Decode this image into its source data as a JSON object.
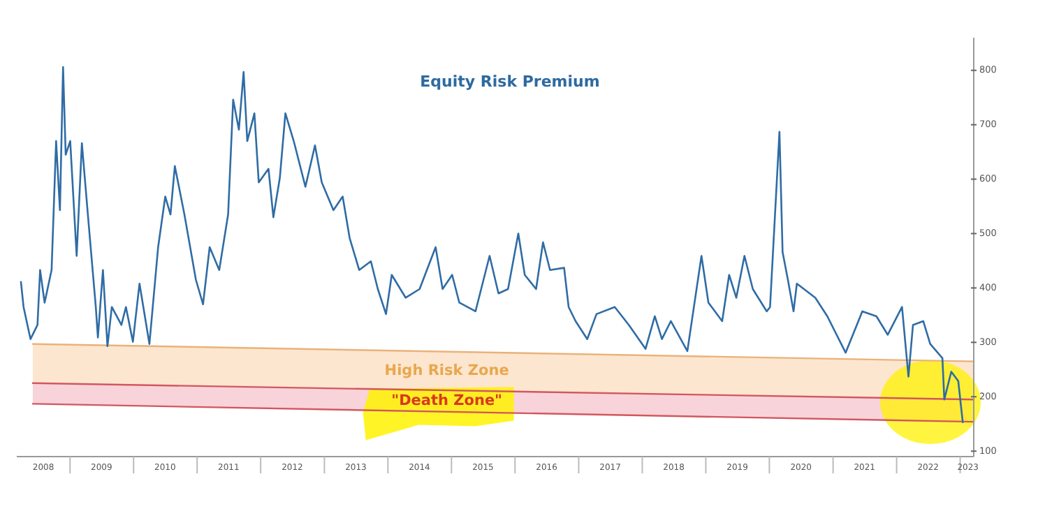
{
  "chart_data": {
    "type": "line",
    "title": "Equity Risk Premium",
    "xlim": [
      "2008-03-01",
      "2023-03-20"
    ],
    "ylim": [
      90,
      860
    ],
    "xticks": [
      {
        "value": "2008-08-01",
        "label": "2008"
      },
      {
        "value": "2009-01-01",
        "label": null
      },
      {
        "value": "2009-07-01",
        "label": "2009"
      },
      {
        "value": "2010-01-01",
        "label": null
      },
      {
        "value": "2010-07-01",
        "label": "2010"
      },
      {
        "value": "2011-01-01",
        "label": null
      },
      {
        "value": "2011-07-01",
        "label": "2011"
      },
      {
        "value": "2012-01-01",
        "label": null
      },
      {
        "value": "2012-07-01",
        "label": "2012"
      },
      {
        "value": "2013-01-01",
        "label": null
      },
      {
        "value": "2013-07-01",
        "label": "2013"
      },
      {
        "value": "2014-01-01",
        "label": null
      },
      {
        "value": "2014-07-01",
        "label": "2014"
      },
      {
        "value": "2015-01-01",
        "label": null
      },
      {
        "value": "2015-07-01",
        "label": "2015"
      },
      {
        "value": "2016-01-01",
        "label": null
      },
      {
        "value": "2016-07-01",
        "label": "2016"
      },
      {
        "value": "2017-01-01",
        "label": null
      },
      {
        "value": "2017-07-01",
        "label": "2017"
      },
      {
        "value": "2018-01-01",
        "label": null
      },
      {
        "value": "2018-07-01",
        "label": "2018"
      },
      {
        "value": "2019-01-01",
        "label": null
      },
      {
        "value": "2019-07-01",
        "label": "2019"
      },
      {
        "value": "2020-01-01",
        "label": null
      },
      {
        "value": "2020-07-01",
        "label": "2020"
      },
      {
        "value": "2021-01-01",
        "label": null
      },
      {
        "value": "2021-07-01",
        "label": "2021"
      },
      {
        "value": "2022-01-01",
        "label": null
      },
      {
        "value": "2022-07-01",
        "label": "2022"
      },
      {
        "value": "2023-01-01",
        "label": null
      },
      {
        "value": "2023-02-15",
        "label": "2023"
      }
    ],
    "yticks": [
      100,
      200,
      300,
      400,
      500,
      600,
      700,
      800
    ],
    "grid": false,
    "series": [
      {
        "type": "line",
        "color": "#e9b27a",
        "x": [
          "2008-06-01",
          "2023-03-20"
        ],
        "values": [
          297,
          265
        ]
      },
      {
        "type": "line",
        "color": "#d2575f",
        "x": [
          "2008-06-01",
          "2023-03-20"
        ],
        "values": [
          225,
          195
        ]
      },
      {
        "type": "line",
        "color": "#d2575f",
        "x": [
          "2008-06-01",
          "2023-03-20"
        ],
        "values": [
          187,
          154
        ]
      },
      {
        "color": "#2f6ca5",
        "x": [
          "2008-03-25",
          "2008-04-09",
          "2008-05-19",
          "2008-06-28",
          "2008-07-13",
          "2008-08-08",
          "2008-09-17",
          "2008-10-13",
          "2008-11-04",
          "2008-11-22",
          "2008-12-07",
          "2009-01-02",
          "2009-02-08",
          "2009-03-10",
          "2009-04-20",
          "2009-05-29",
          "2009-06-10",
          "2009-07-09",
          "2009-08-04",
          "2009-08-29",
          "2009-10-23",
          "2009-11-18",
          "2009-12-28",
          "2010-02-04",
          "2010-04-02",
          "2010-05-22",
          "2010-07-02",
          "2010-08-01",
          "2010-08-26",
          "2010-10-20",
          "2010-12-25",
          "2011-02-04",
          "2011-03-14",
          "2011-05-08",
          "2011-06-28",
          "2011-07-27",
          "2011-08-29",
          "2011-09-25",
          "2011-10-16",
          "2011-11-26",
          "2011-12-21",
          "2012-02-15",
          "2012-03-14",
          "2012-04-20",
          "2012-05-22",
          "2012-07-09",
          "2012-09-14",
          "2012-11-08",
          "2012-12-17",
          "2013-02-22",
          "2013-04-16",
          "2013-05-26",
          "2013-07-20",
          "2013-09-25",
          "2013-11-04",
          "2013-12-21",
          "2014-01-23",
          "2014-04-13",
          "2014-07-02",
          "2014-10-02",
          "2014-11-11",
          "2015-01-05",
          "2015-02-15",
          "2015-05-19",
          "2015-08-08",
          "2015-09-28",
          "2015-11-22",
          "2016-01-20",
          "2016-02-26",
          "2016-05-01",
          "2016-06-10",
          "2016-07-20",
          "2016-10-09",
          "2016-11-04",
          "2016-12-14",
          "2017-02-19",
          "2017-04-13",
          "2017-07-27",
          "2017-10-16",
          "2018-01-20",
          "2018-03-14",
          "2018-04-24",
          "2018-06-14",
          "2018-09-17",
          "2018-12-07",
          "2019-01-16",
          "2019-04-05",
          "2019-05-15",
          "2019-06-25",
          "2019-08-11",
          "2019-09-28",
          "2019-12-17",
          "2020-01-05",
          "2020-02-28",
          "2020-03-17",
          "2020-04-16",
          "2020-05-19",
          "2020-06-07",
          "2020-09-21",
          "2020-11-29",
          "2021-03-14",
          "2021-06-18",
          "2021-09-07",
          "2021-11-11",
          "2022-02-01",
          "2022-03-10",
          "2022-04-05",
          "2022-06-03",
          "2022-07-13",
          "2022-09-21",
          "2022-10-02",
          "2022-11-11",
          "2022-12-21",
          "2023-01-16"
        ],
        "values": [
          411,
          365,
          306,
          332,
          433,
          373,
          433,
          670,
          543,
          806,
          645,
          670,
          459,
          666,
          510,
          365,
          309,
          433,
          293,
          365,
          332,
          365,
          301,
          408,
          297,
          475,
          568,
          535,
          624,
          535,
          415,
          370,
          475,
          433,
          535,
          746,
          691,
          797,
          670,
          721,
          594,
          619,
          530,
          602,
          721,
          670,
          586,
          662,
          594,
          543,
          568,
          492,
          433,
          449,
          398,
          352,
          424,
          382,
          398,
          475,
          398,
          424,
          373,
          357,
          459,
          390,
          398,
          500,
          424,
          398,
          484,
          433,
          437,
          365,
          339,
          306,
          352,
          365,
          332,
          288,
          348,
          306,
          339,
          284,
          459,
          373,
          339,
          424,
          382,
          459,
          398,
          357,
          365,
          687,
          466,
          416,
          357,
          408,
          382,
          348,
          281,
          357,
          348,
          314,
          365,
          237,
          332,
          339,
          297,
          271,
          195,
          246,
          229,
          153
        ]
      }
    ],
    "annotations": [
      "High Risk Zone",
      "\"Death Zone\""
    ]
  }
}
